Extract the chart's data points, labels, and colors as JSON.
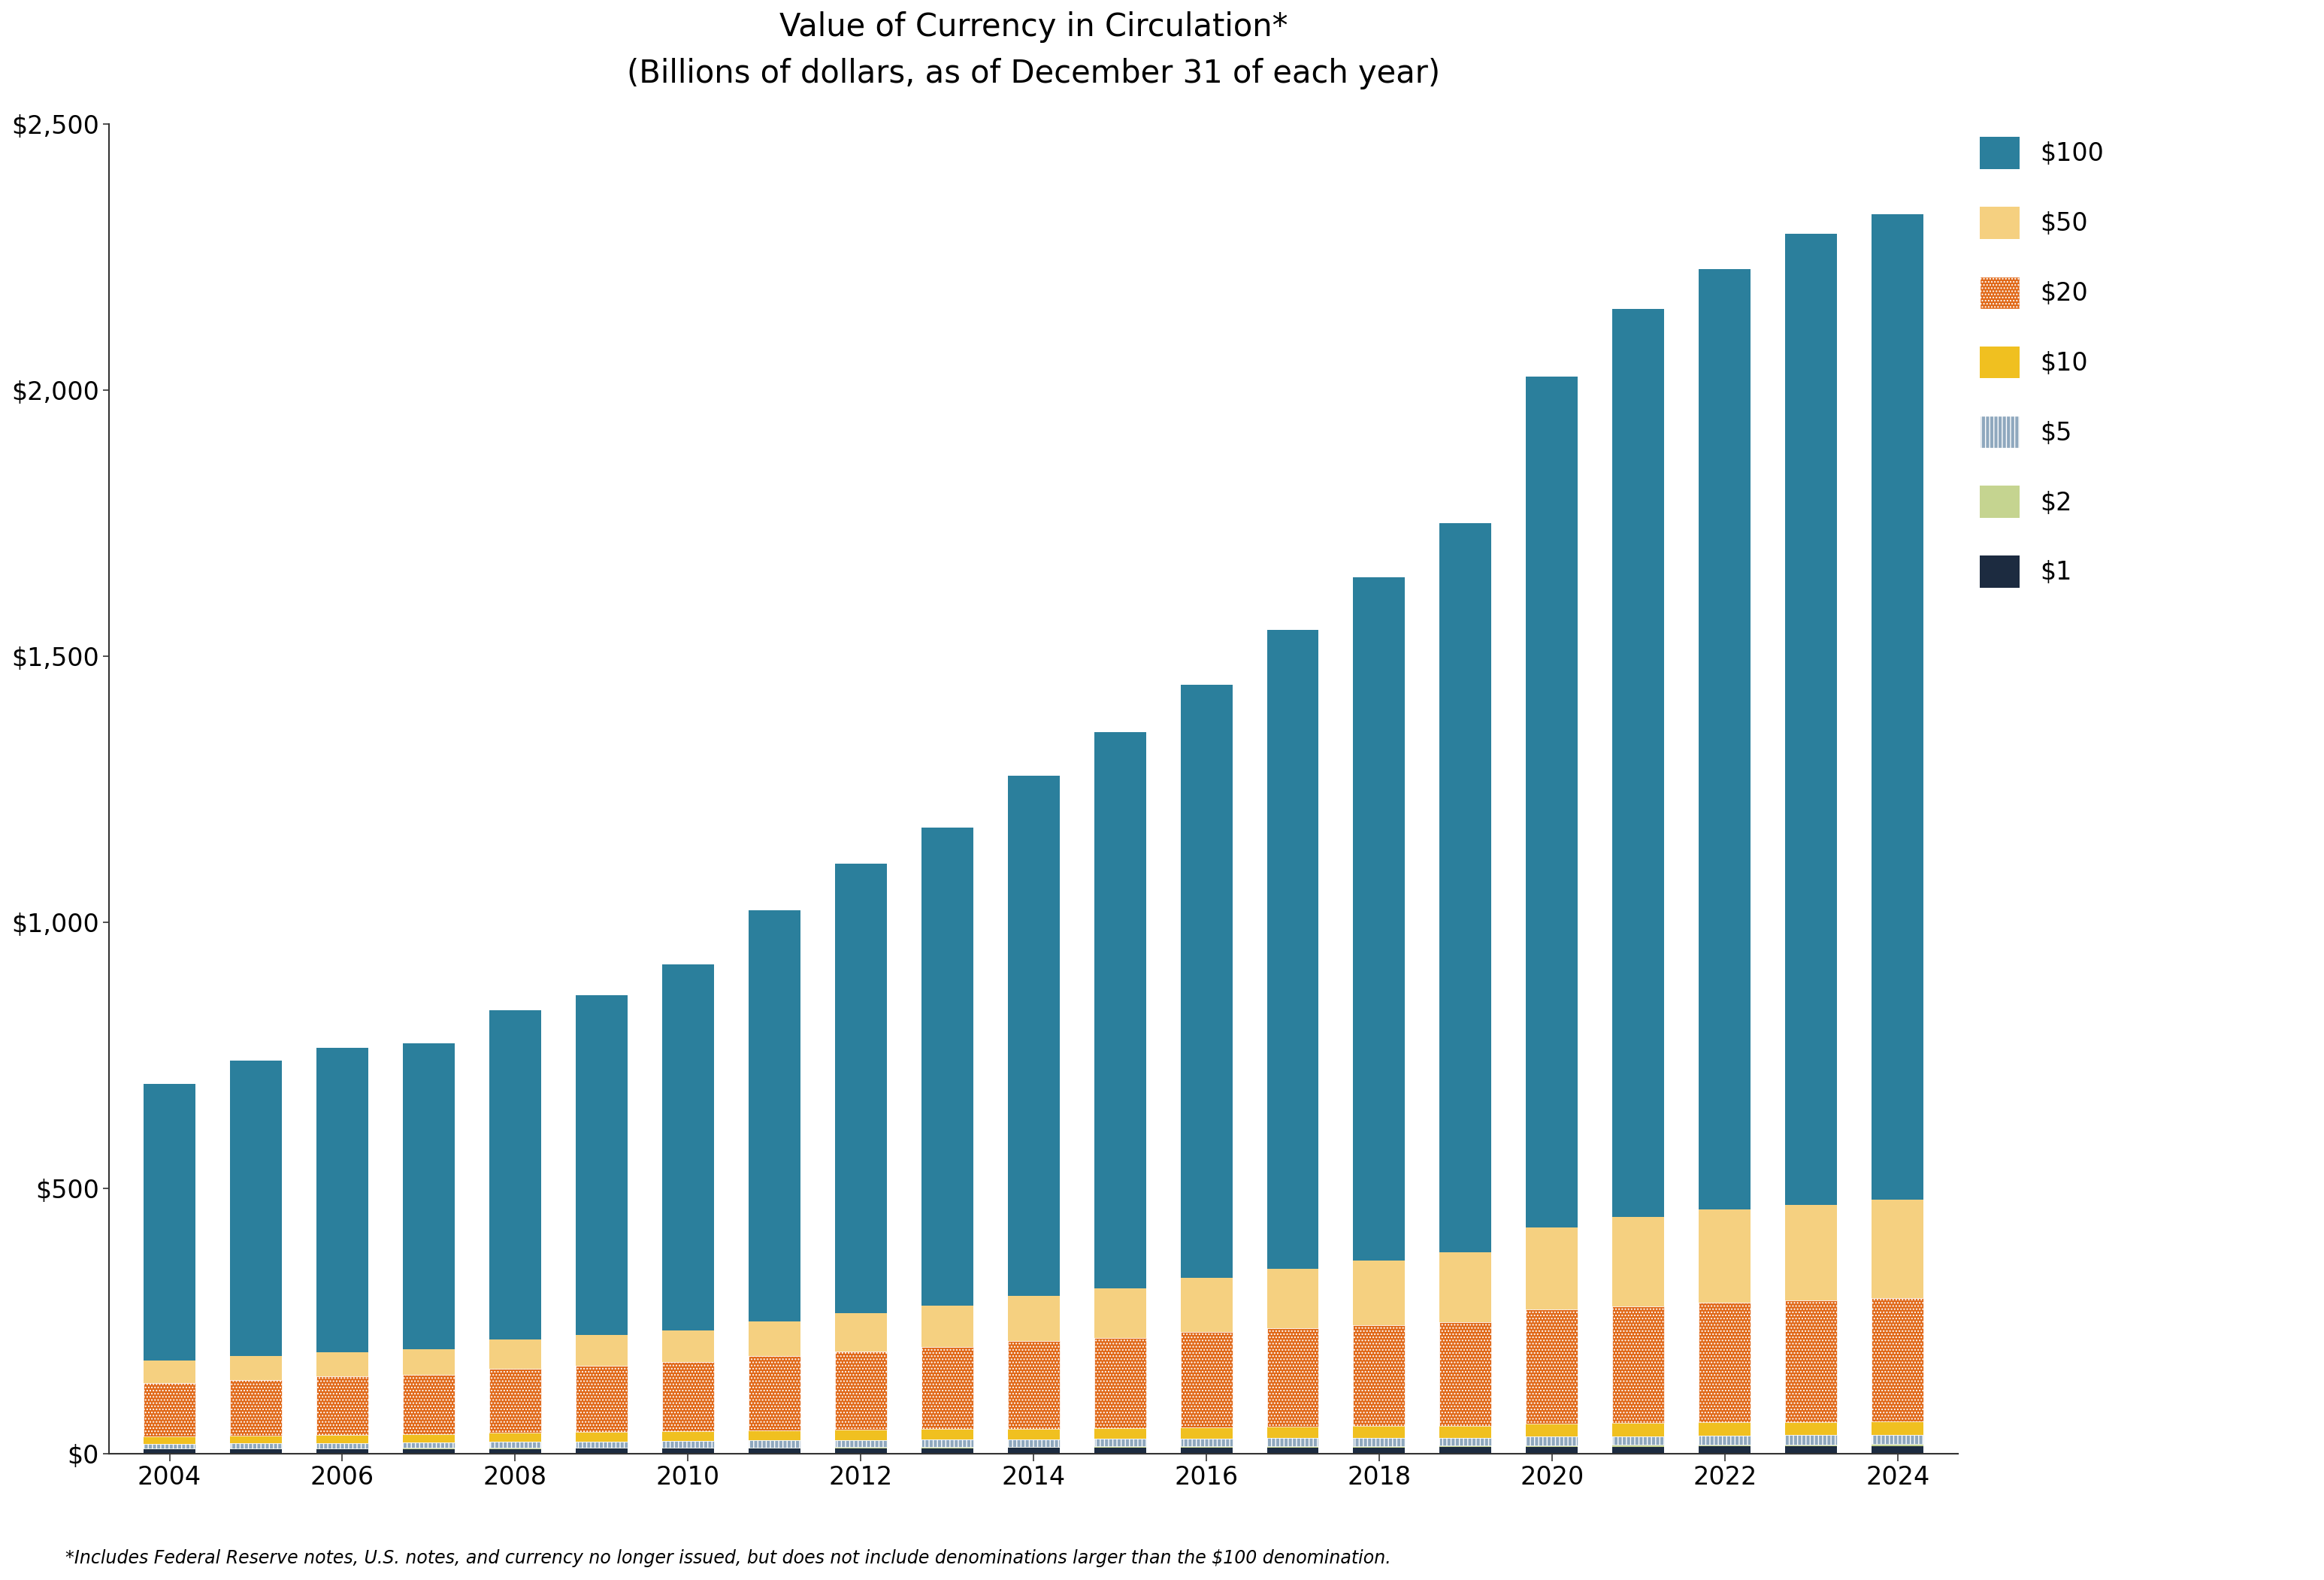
{
  "title_line1": "Value of Currency in Circulation*",
  "title_line2": "(Billions of dollars, as of December 31 of each year)",
  "footnote": "*Includes Federal Reserve notes, U.S. notes, and currency no longer issued, but does not include denominations larger than the $100 denomination.",
  "years": [
    2004,
    2005,
    2006,
    2007,
    2008,
    2009,
    2010,
    2011,
    2012,
    2013,
    2014,
    2015,
    2016,
    2017,
    2018,
    2019,
    2020,
    2021,
    2022,
    2023,
    2024
  ],
  "denom_order": [
    "$1",
    "$2",
    "$5",
    "$10",
    "$20",
    "$50",
    "$100"
  ],
  "legend_order": [
    "$100",
    "$50",
    "$20",
    "$10",
    "$5",
    "$2",
    "$1"
  ],
  "colors": {
    "$1": "#1c2b40",
    "$2": "#c5d490",
    "$5": "#8fa8be",
    "$10": "#f0c020",
    "$20": "#e06818",
    "$50": "#f5d080",
    "$100": "#2b7f9c"
  },
  "hatches": {
    "$1": "",
    "$2": "",
    "$5": "|||",
    "$10": "",
    "$20": "....",
    "$50": "",
    "$100": ""
  },
  "data": {
    "$1": [
      8.7,
      9.0,
      9.2,
      9.4,
      9.5,
      9.8,
      10.0,
      10.3,
      10.6,
      10.9,
      11.2,
      11.5,
      11.8,
      12.1,
      12.4,
      12.7,
      13.3,
      13.8,
      14.2,
      14.5,
      14.8
    ],
    "$2": [
      1.5,
      1.6,
      1.6,
      1.7,
      1.7,
      1.8,
      1.9,
      2.0,
      2.1,
      2.2,
      2.3,
      2.4,
      2.5,
      2.6,
      2.7,
      2.8,
      3.0,
      3.1,
      3.2,
      3.3,
      3.4
    ],
    "$5": [
      9.0,
      9.5,
      10.0,
      10.5,
      11.5,
      12.0,
      12.5,
      13.0,
      13.5,
      13.8,
      14.0,
      14.2,
      14.5,
      14.8,
      15.0,
      15.2,
      16.0,
      16.5,
      17.0,
      17.3,
      17.6
    ],
    "$10": [
      14.0,
      14.5,
      15.0,
      15.5,
      17.0,
      17.5,
      18.0,
      18.5,
      19.0,
      19.5,
      20.0,
      20.5,
      21.0,
      21.5,
      22.0,
      22.5,
      24.0,
      24.5,
      25.0,
      25.3,
      25.6
    ],
    "$20": [
      100,
      105,
      110,
      112,
      120,
      125,
      130,
      140,
      148,
      155,
      165,
      170,
      180,
      185,
      190,
      195,
      215,
      220,
      225,
      228,
      232
    ],
    "$50": [
      42,
      44,
      46,
      48,
      55,
      57,
      60,
      65,
      72,
      78,
      85,
      93,
      102,
      112,
      122,
      131,
      155,
      168,
      175,
      180,
      185
    ],
    "$100": [
      521,
      556,
      572,
      575,
      619,
      640,
      688,
      773,
      844,
      898,
      978,
      1046,
      1115,
      1202,
      1284,
      1371,
      1599,
      1707,
      1769,
      1826,
      1852
    ]
  },
  "ylim": [
    0,
    2500
  ],
  "yticks": [
    0,
    500,
    1000,
    1500,
    2000,
    2500
  ],
  "ytick_labels": [
    "$0",
    "$500",
    "$1,000",
    "$1,500",
    "$2,000",
    "$2,500"
  ],
  "background_color": "#ffffff",
  "bar_width": 0.6,
  "title_fontsize": 30,
  "tick_fontsize": 24,
  "legend_fontsize": 24,
  "footnote_fontsize": 17
}
